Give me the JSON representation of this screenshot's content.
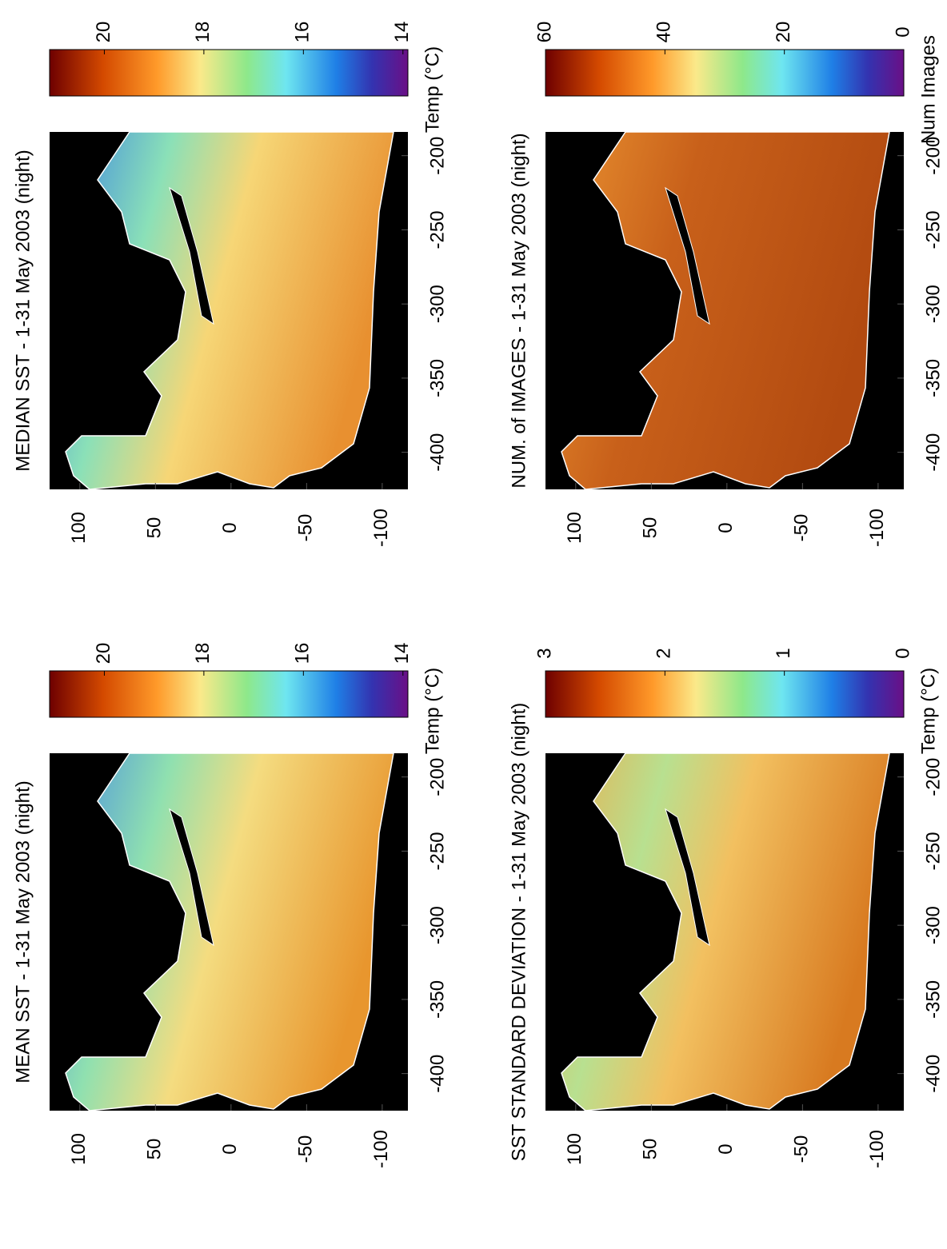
{
  "chart_data": [
    {
      "type": "heatmap",
      "title": "MEAN SST - 1-31 May 2003 (night)",
      "ylim": [
        -117,
        120
      ],
      "yticks": [
        100,
        50,
        0,
        -50,
        -100
      ],
      "xlim": [
        -425,
        -184
      ],
      "xticks": [
        -400,
        -350,
        -300,
        -250,
        -200
      ],
      "colorbar": {
        "label": "Temp (°C)",
        "clim": [
          13.9,
          21.1
        ],
        "ticks": [
          20,
          18,
          16,
          14
        ]
      }
    },
    {
      "type": "heatmap",
      "title": "MEDIAN SST - 1-31 May 2003 (night)",
      "ylim": [
        -117,
        120
      ],
      "yticks": [
        100,
        50,
        0,
        -50,
        -100
      ],
      "xlim": [
        -425,
        -184
      ],
      "xticks": [
        -400,
        -350,
        -300,
        -250,
        -200
      ],
      "colorbar": {
        "label": "Temp (°C)",
        "clim": [
          13.9,
          21.1
        ],
        "ticks": [
          20,
          18,
          16,
          14
        ]
      }
    },
    {
      "type": "heatmap",
      "title": "SST STANDARD DEVIATION - 1-31 May 2003 (night)",
      "ylim": [
        -117,
        120
      ],
      "yticks": [
        100,
        50,
        0,
        -50,
        -100
      ],
      "xlim": [
        -425,
        -184
      ],
      "xticks": [
        -400,
        -350,
        -300,
        -250,
        -200
      ],
      "colorbar": {
        "label": "Temp (°C)",
        "clim": [
          0,
          3
        ],
        "ticks": [
          3,
          2,
          1,
          0
        ]
      }
    },
    {
      "type": "heatmap",
      "title": "NUM. of IMAGES - 1-31 May 2003 (night)",
      "ylim": [
        -117,
        120
      ],
      "yticks": [
        100,
        50,
        0,
        -50,
        -100
      ],
      "xlim": [
        -425,
        -184
      ],
      "xticks": [
        -400,
        -350,
        -300,
        -250,
        -200
      ],
      "colorbar": {
        "label": "Num Images",
        "clim": [
          0,
          60
        ],
        "ticks": [
          60,
          40,
          20,
          0
        ]
      }
    }
  ]
}
